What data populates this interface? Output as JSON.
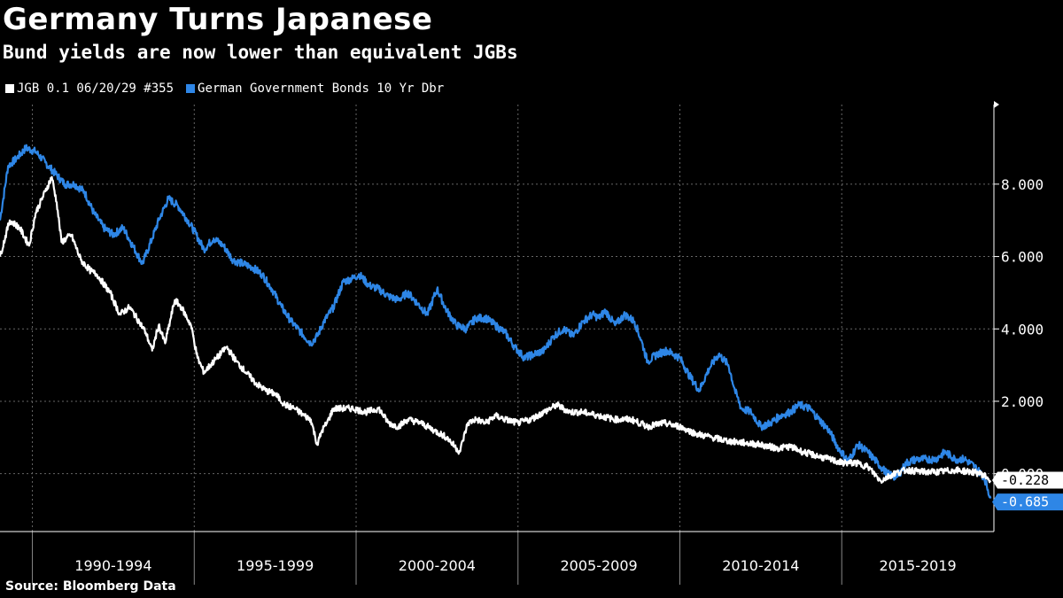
{
  "header": {
    "title": "Germany Turns Japanese",
    "subtitle": "Bund yields are now lower than equivalent JGBs"
  },
  "footer": {
    "source": "Source: Bloomberg Data"
  },
  "colors": {
    "background": "#000000",
    "jgb": "#ffffff",
    "bund": "#2e86e6",
    "grid": "#666666"
  },
  "chart_data": {
    "type": "line",
    "title": "Germany Turns Japanese",
    "subtitle": "Bund yields are now lower than equivalent JGBs",
    "xlabel": "",
    "ylabel": "",
    "xlim": [
      1989.0,
      2019.7
    ],
    "ylim": [
      -1.6,
      10.2
    ],
    "y_ticks": [
      0,
      2,
      4,
      6,
      8
    ],
    "y_tick_labels": [
      "0.000",
      "2.000",
      "4.000",
      "6.000",
      "8.000"
    ],
    "x_periods": [
      {
        "label": "1990-1994",
        "start": 1990,
        "end": 1995
      },
      {
        "label": "1995-1999",
        "start": 1995,
        "end": 2000
      },
      {
        "label": "2000-2004",
        "start": 2000,
        "end": 2005
      },
      {
        "label": "2005-2009",
        "start": 2005,
        "end": 2010
      },
      {
        "label": "2010-2014",
        "start": 2010,
        "end": 2015
      },
      {
        "label": "2015-2019",
        "start": 2015,
        "end": 2020
      }
    ],
    "grid": true,
    "legend_position": "top-left",
    "series": [
      {
        "name": "JGB 0.1 06/20/29 #355",
        "color": "#ffffff",
        "last_value": "-0.228",
        "x": [
          1989.0,
          1989.3,
          1989.6,
          1989.9,
          1990.1,
          1990.4,
          1990.6,
          1990.75,
          1990.9,
          1991.2,
          1991.5,
          1991.8,
          1992.0,
          1992.4,
          1992.7,
          1993.0,
          1993.3,
          1993.5,
          1993.7,
          1993.9,
          1994.1,
          1994.4,
          1994.6,
          1994.9,
          1995.1,
          1995.3,
          1995.5,
          1995.7,
          1996.0,
          1996.3,
          1996.6,
          1996.9,
          1997.2,
          1997.5,
          1997.8,
          1998.1,
          1998.4,
          1998.6,
          1998.8,
          1998.95,
          1999.1,
          1999.3,
          1999.6,
          1999.9,
          2000.3,
          2000.7,
          2001.0,
          2001.3,
          2001.6,
          2002.0,
          2002.4,
          2002.8,
          2003.2,
          2003.45,
          2003.7,
          2004.0,
          2004.3,
          2004.6,
          2005.0,
          2005.4,
          2005.8,
          2006.2,
          2006.6,
          2007.0,
          2007.5,
          2008.0,
          2008.5,
          2009.0,
          2009.5,
          2010.0,
          2010.5,
          2011.0,
          2011.5,
          2012.0,
          2012.5,
          2013.0,
          2013.4,
          2013.8,
          2014.2,
          2014.6,
          2015.0,
          2015.4,
          2015.8,
          2016.2,
          2016.6,
          2017.0,
          2017.5,
          2018.0,
          2018.5,
          2019.0,
          2019.3,
          2019.5,
          2019.6
        ],
        "y": [
          6.0,
          7.0,
          6.8,
          6.3,
          7.2,
          7.8,
          8.2,
          7.5,
          6.4,
          6.6,
          5.9,
          5.6,
          5.5,
          5.0,
          4.4,
          4.6,
          4.2,
          3.9,
          3.4,
          4.1,
          3.6,
          4.8,
          4.6,
          4.1,
          3.2,
          2.8,
          3.0,
          3.2,
          3.5,
          3.1,
          2.8,
          2.5,
          2.3,
          2.2,
          1.9,
          1.8,
          1.6,
          1.5,
          0.8,
          1.2,
          1.4,
          1.8,
          1.8,
          1.8,
          1.7,
          1.8,
          1.4,
          1.3,
          1.5,
          1.4,
          1.2,
          1.0,
          0.6,
          1.4,
          1.5,
          1.4,
          1.6,
          1.5,
          1.4,
          1.5,
          1.7,
          1.9,
          1.7,
          1.7,
          1.6,
          1.5,
          1.5,
          1.3,
          1.4,
          1.3,
          1.1,
          1.0,
          0.9,
          0.85,
          0.8,
          0.7,
          0.75,
          0.6,
          0.5,
          0.4,
          0.3,
          0.3,
          0.2,
          -0.2,
          0.0,
          0.1,
          0.05,
          0.05,
          0.1,
          0.05,
          0.0,
          -0.1,
          -0.228
        ]
      },
      {
        "name": "German Government Bonds 10 Yr Dbr",
        "color": "#2e86e6",
        "last_value": "-0.685",
        "x": [
          1989.0,
          1989.25,
          1989.5,
          1989.8,
          1990.1,
          1990.4,
          1990.7,
          1991.0,
          1991.3,
          1991.6,
          1991.9,
          1992.2,
          1992.5,
          1992.8,
          1993.1,
          1993.4,
          1993.7,
          1993.9,
          1994.2,
          1994.5,
          1994.8,
          1995.0,
          1995.3,
          1995.6,
          1995.9,
          1996.2,
          1996.5,
          1996.8,
          1997.1,
          1997.4,
          1997.7,
          1998.0,
          1998.3,
          1998.6,
          1998.8,
          1999.0,
          1999.3,
          1999.6,
          1999.9,
          2000.1,
          2000.4,
          2000.7,
          2001.0,
          2001.3,
          2001.6,
          2001.9,
          2002.2,
          2002.5,
          2002.8,
          2003.1,
          2003.4,
          2003.7,
          2004.0,
          2004.3,
          2004.6,
          2004.9,
          2005.2,
          2005.5,
          2005.8,
          2006.1,
          2006.4,
          2006.7,
          2007.0,
          2007.3,
          2007.5,
          2007.7,
          2008.0,
          2008.3,
          2008.6,
          2008.8,
          2009.0,
          2009.3,
          2009.6,
          2010.0,
          2010.3,
          2010.6,
          2010.9,
          2011.2,
          2011.5,
          2011.7,
          2011.9,
          2012.2,
          2012.5,
          2012.8,
          2013.1,
          2013.4,
          2013.7,
          2014.0,
          2014.3,
          2014.6,
          2014.9,
          2015.2,
          2015.5,
          2015.8,
          2016.1,
          2016.4,
          2016.7,
          2017.0,
          2017.3,
          2017.6,
          2017.9,
          2018.2,
          2018.5,
          2018.8,
          2019.1,
          2019.4,
          2019.6
        ],
        "y": [
          7.0,
          8.5,
          8.7,
          9.0,
          8.9,
          8.6,
          8.3,
          8.0,
          8.0,
          7.8,
          7.2,
          6.8,
          6.6,
          6.8,
          6.3,
          5.8,
          6.5,
          7.0,
          7.6,
          7.4,
          7.0,
          6.7,
          6.2,
          6.5,
          6.3,
          5.9,
          5.8,
          5.7,
          5.5,
          5.1,
          4.6,
          4.2,
          3.9,
          3.6,
          3.8,
          4.2,
          4.6,
          5.3,
          5.4,
          5.5,
          5.2,
          5.1,
          4.9,
          4.8,
          5.0,
          4.7,
          4.4,
          5.1,
          4.5,
          4.1,
          4.0,
          4.3,
          4.3,
          4.1,
          3.9,
          3.5,
          3.2,
          3.3,
          3.4,
          3.8,
          4.0,
          3.8,
          4.2,
          4.4,
          4.3,
          4.5,
          4.1,
          4.4,
          4.2,
          3.7,
          3.1,
          3.3,
          3.4,
          3.2,
          2.7,
          2.3,
          2.9,
          3.3,
          3.0,
          2.3,
          1.8,
          1.7,
          1.3,
          1.4,
          1.6,
          1.7,
          1.9,
          1.8,
          1.5,
          1.2,
          0.7,
          0.35,
          0.8,
          0.6,
          0.3,
          0.0,
          -0.1,
          0.3,
          0.4,
          0.4,
          0.4,
          0.6,
          0.4,
          0.4,
          0.2,
          -0.1,
          -0.685
        ]
      }
    ]
  }
}
